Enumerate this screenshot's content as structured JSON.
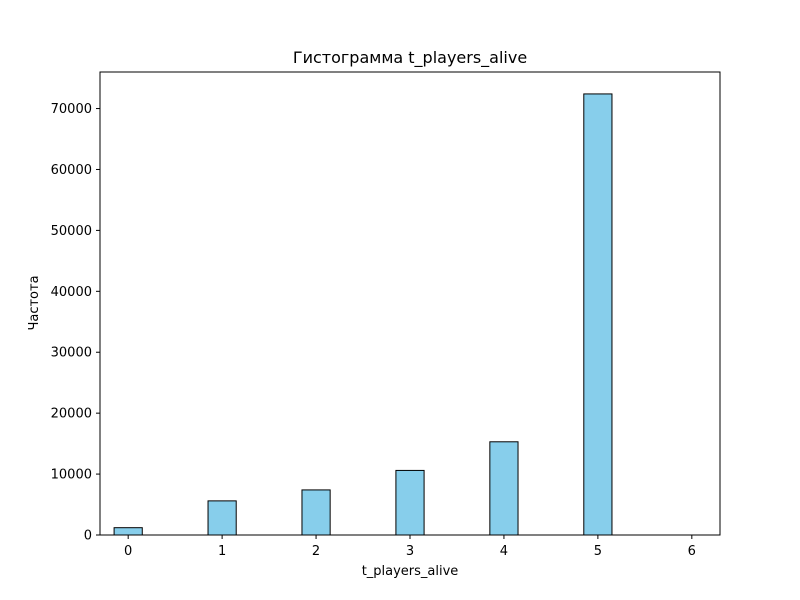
{
  "chart_data": {
    "type": "bar",
    "title": "Гистограмма t_players_alive",
    "xlabel": "t_players_alive",
    "ylabel": "Частота",
    "x": [
      0,
      1,
      2,
      3,
      4,
      5
    ],
    "values": [
      1200,
      5600,
      7400,
      10600,
      15300,
      72400
    ],
    "bin_width": 0.3,
    "xlim": [
      -0.3,
      6.3
    ],
    "ylim": [
      0,
      76000
    ],
    "xticks": [
      0,
      1,
      2,
      3,
      4,
      5,
      6
    ],
    "yticks": [
      0,
      10000,
      20000,
      30000,
      40000,
      50000,
      60000,
      70000
    ],
    "grid": false,
    "colors": {
      "bar_fill": "#87ceeb",
      "bar_edge": "#000000",
      "axis": "#000000"
    }
  }
}
